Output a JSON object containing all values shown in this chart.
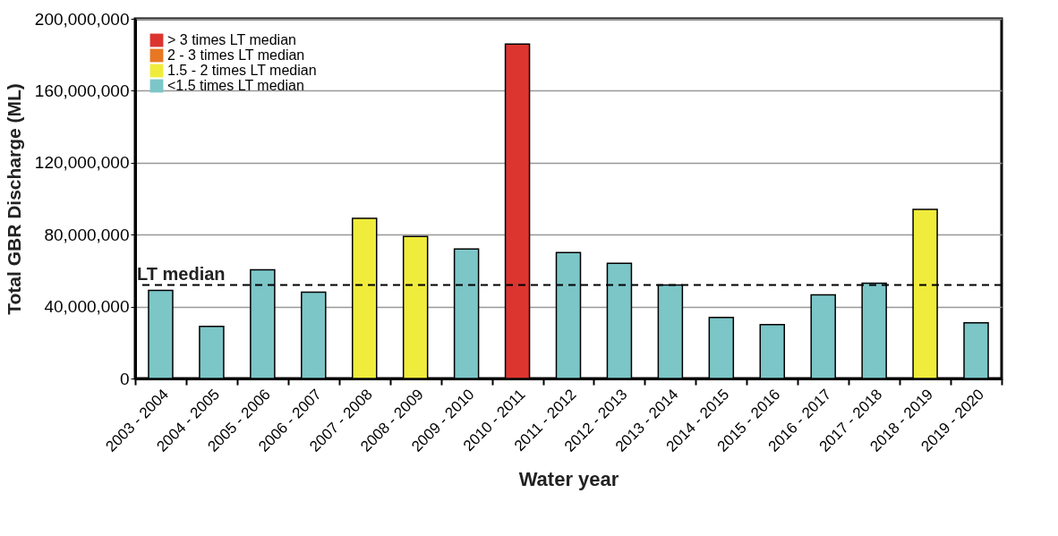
{
  "chart_data": {
    "type": "bar",
    "xlabel": "Water year",
    "ylabel": "Total GBR Discharge (ML)",
    "categories": [
      "2003 - 2004",
      "2004 - 2005",
      "2005 - 2006",
      "2006 - 2007",
      "2007 - 2008",
      "2008 - 2009",
      "2009 - 2010",
      "2010 - 2011",
      "2011 - 2012",
      "2012 - 2013",
      "2013 - 2014",
      "2014 - 2015",
      "2015 - 2016",
      "2016 - 2017",
      "2017 - 2018",
      "2018 - 2019",
      "2019 - 2020"
    ],
    "series": [
      {
        "name": "> 3 times LT median",
        "color": "#dc3530",
        "values": [
          null,
          null,
          null,
          null,
          null,
          null,
          null,
          186000000,
          null,
          null,
          null,
          null,
          null,
          null,
          null,
          null,
          null
        ]
      },
      {
        "name": "2 - 3 times LT median",
        "color": "#e87722",
        "values": [
          null,
          null,
          null,
          null,
          null,
          null,
          null,
          null,
          null,
          null,
          null,
          null,
          null,
          null,
          null,
          null,
          null
        ]
      },
      {
        "name": "1.5 - 2 times LT median",
        "color": "#f0ec3c",
        "values": [
          null,
          null,
          null,
          null,
          89000000,
          79000000,
          null,
          null,
          null,
          null,
          null,
          null,
          null,
          null,
          null,
          94000000,
          null
        ]
      },
      {
        "name": "<1.5 times LT median",
        "color": "#7cc6c8",
        "values": [
          49000000,
          29000000,
          60500000,
          48000000,
          null,
          null,
          72000000,
          null,
          70000000,
          64000000,
          52000000,
          34000000,
          30000000,
          46500000,
          53000000,
          null,
          31000000
        ]
      }
    ],
    "ylim": [
      0,
      200000000
    ],
    "yticks": [
      0,
      {
        "value": 40000000,
        "label": "40,000,000"
      },
      {
        "value": 80000000,
        "label": "80,000,000"
      },
      {
        "value": 120000000,
        "label": "120,000,000"
      },
      {
        "value": 160000000,
        "label": "160,000,000"
      },
      {
        "value": 200000000,
        "label": "200,000,000"
      }
    ],
    "grid": "y",
    "legend": "top left",
    "ref_lines": [
      {
        "axis": "y",
        "value": 52000000,
        "label": "LT median",
        "line_style": "dashed",
        "color": "#000000"
      }
    ]
  }
}
